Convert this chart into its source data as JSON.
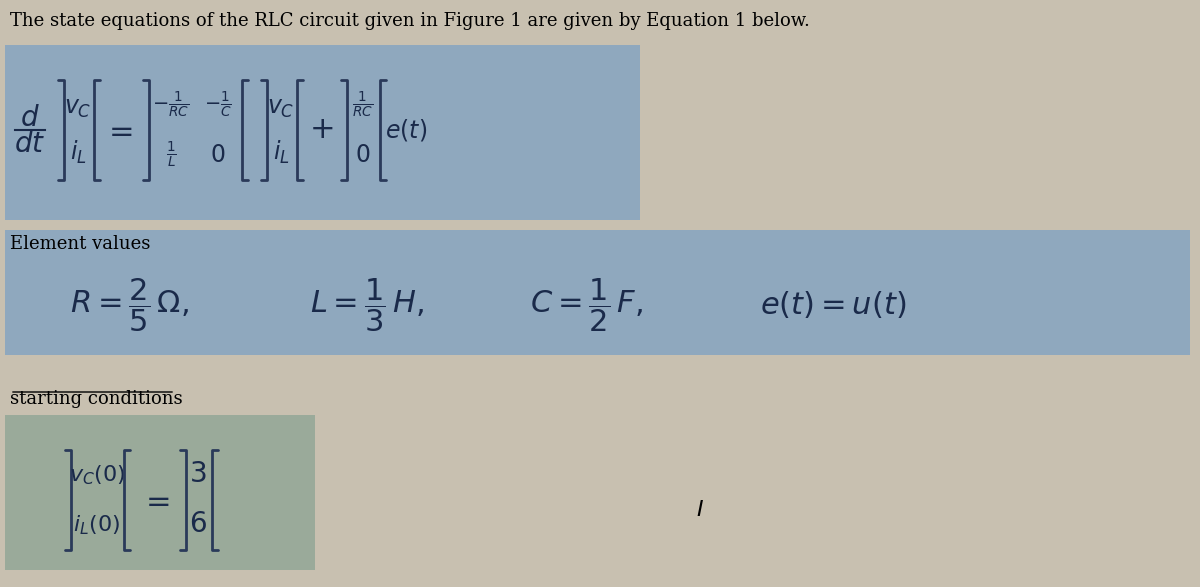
{
  "title_text": "The state equations of the RLC circuit given in Figure 1 are given by Equation 1 below.",
  "bg_color": "#c8c0b0",
  "equation_bg": "#a8b8c8",
  "element_bg": "#a8b4c0",
  "init_bg": "#b0b0a8",
  "fig_width": 12.0,
  "fig_height": 5.87
}
